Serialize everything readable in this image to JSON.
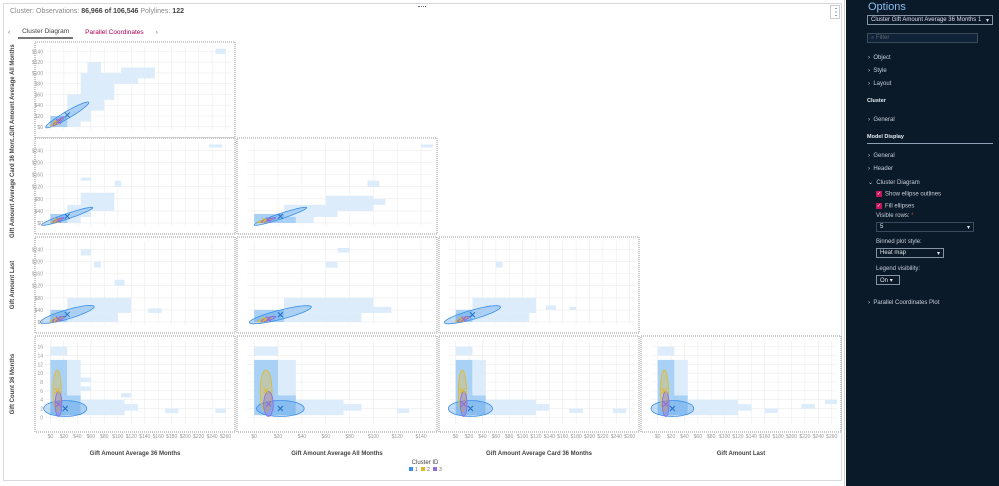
{
  "header": {
    "label_obs": "Cluster: Observations:",
    "obs": "86,966 of 106,546",
    "label_poly": "Polylines:",
    "poly": "122",
    "menu_icon": "⋮"
  },
  "tabs": {
    "prev": "‹",
    "next": "›",
    "items": [
      "Cluster Diagram",
      "Parallel Coordinates"
    ]
  },
  "colors": {
    "cluster1": "#3a8ee6",
    "cluster2": "#e3b72a",
    "cluster3": "#8c6ce0",
    "bin1": "#dcecfb",
    "bin2": "#a9d1f5",
    "bin3": "#3c97e6",
    "sidebar": "#0b1a29"
  },
  "chart_data": {
    "type": "heatmap",
    "legend": {
      "title": "Cluster ID",
      "items": [
        "1",
        "2",
        "3"
      ],
      "placement": "bottom"
    },
    "variables": [
      {
        "name": "Gift Amount Average 36 Months",
        "short": "Gift Amount Average 36 Months",
        "range": [
          -8,
          268
        ],
        "ticks": [
          0,
          20,
          40,
          60,
          80,
          100,
          120,
          140,
          160,
          180,
          200,
          220,
          240,
          260
        ],
        "prefix": "$"
      },
      {
        "name": "Gift Amount Average All Months",
        "short": "Gift Amount Average All Months",
        "range": [
          -6,
          150
        ],
        "ticks": [
          0,
          20,
          40,
          60,
          80,
          100,
          120,
          140
        ],
        "prefix": "$"
      },
      {
        "name": "Gift Amount Average Card 36 Months",
        "short": "Gift Amount Average Card 36 Mont...",
        "range": [
          -10,
          268
        ],
        "ticks": [
          0,
          20,
          40,
          60,
          80,
          100,
          120,
          140,
          160,
          180,
          200,
          220,
          240,
          260
        ],
        "yticks": [
          0,
          40,
          80,
          120,
          160,
          200,
          240
        ],
        "prefix": "$"
      },
      {
        "name": "Gift Amount Last",
        "short": "Gift Amount Last",
        "range": [
          -10,
          268
        ],
        "ticks": [
          0,
          20,
          40,
          60,
          80,
          100,
          120,
          140,
          160,
          180,
          200,
          220,
          240,
          260
        ],
        "yticks": [
          0,
          40,
          80,
          120,
          160,
          200,
          240
        ],
        "prefix": "$"
      },
      {
        "name": "Gift Count 36 Months",
        "short": "Gift Count 36 Months",
        "range": [
          -1.5,
          17.5
        ],
        "ticks": [
          0,
          2,
          4,
          6,
          8,
          10,
          12,
          14,
          16
        ],
        "prefix": ""
      }
    ],
    "panels": [
      {
        "x": 0,
        "y": 1,
        "bins": [
          [
            5,
            0,
            25,
            15,
            3
          ],
          [
            0,
            0,
            25,
            20,
            2
          ],
          [
            25,
            0,
            45,
            20,
            1
          ],
          [
            25,
            10,
            60,
            30,
            1
          ],
          [
            25,
            30,
            65,
            60,
            1
          ],
          [
            65,
            30,
            80,
            50,
            1
          ],
          [
            45,
            50,
            95,
            60,
            1
          ],
          [
            45,
            60,
            95,
            100,
            1
          ],
          [
            55,
            100,
            75,
            120,
            1
          ],
          [
            95,
            80,
            130,
            100,
            1
          ],
          [
            105,
            90,
            135,
            110,
            1
          ],
          [
            135,
            90,
            155,
            110,
            1
          ],
          [
            245,
            135,
            260,
            145,
            1
          ]
        ],
        "clusters": [
          [
            25,
            22,
            32,
            24,
            0.95
          ],
          [
            9,
            8,
            8,
            7,
            0.9
          ],
          [
            12,
            10,
            8,
            8,
            0.9
          ]
        ]
      },
      {
        "x": 0,
        "y": 2,
        "bins": [
          [
            5,
            0,
            25,
            20,
            3
          ],
          [
            0,
            0,
            25,
            30,
            2
          ],
          [
            25,
            0,
            45,
            30,
            1
          ],
          [
            25,
            20,
            60,
            60,
            1
          ],
          [
            45,
            40,
            95,
            100,
            1
          ],
          [
            65,
            70,
            80,
            90,
            1
          ],
          [
            95,
            120,
            105,
            140,
            1
          ],
          [
            45,
            140,
            60,
            150,
            1
          ],
          [
            235,
            250,
            255,
            260,
            1
          ]
        ],
        "clusters": [
          [
            25,
            22,
            38,
            30,
            0.95
          ],
          [
            9,
            8,
            8,
            7,
            0.9
          ],
          [
            12,
            10,
            8,
            8,
            0.9
          ]
        ]
      },
      {
        "x": 1,
        "y": 2,
        "bins": [
          [
            12,
            0,
            25,
            20,
            3
          ],
          [
            0,
            0,
            35,
            30,
            2
          ],
          [
            35,
            0,
            50,
            30,
            1
          ],
          [
            25,
            20,
            70,
            60,
            1
          ],
          [
            60,
            40,
            100,
            90,
            1
          ],
          [
            85,
            60,
            110,
            80,
            1
          ],
          [
            95,
            120,
            105,
            140,
            1
          ],
          [
            140,
            250,
            150,
            260,
            1
          ]
        ],
        "clusters": [
          [
            22,
            22,
            22,
            30,
            0.95
          ],
          [
            9,
            8,
            6,
            7,
            0.9
          ],
          [
            12,
            10,
            6,
            8,
            0.9
          ]
        ]
      },
      {
        "x": 0,
        "y": 3,
        "bins": [
          [
            5,
            0,
            25,
            20,
            3
          ],
          [
            0,
            0,
            40,
            40,
            2
          ],
          [
            25,
            0,
            100,
            30,
            1
          ],
          [
            25,
            30,
            120,
            80,
            1
          ],
          [
            55,
            40,
            75,
            50,
            1
          ],
          [
            65,
            180,
            75,
            200,
            1
          ],
          [
            95,
            120,
            110,
            140,
            1
          ],
          [
            45,
            220,
            60,
            240,
            1
          ],
          [
            145,
            30,
            165,
            45,
            1
          ]
        ],
        "clusters": [
          [
            25,
            25,
            40,
            30,
            0.85
          ],
          [
            9,
            8,
            9,
            8,
            0.8
          ],
          [
            12,
            10,
            9,
            9,
            0.8
          ]
        ]
      },
      {
        "x": 1,
        "y": 3,
        "bins": [
          [
            12,
            0,
            25,
            20,
            3
          ],
          [
            0,
            0,
            40,
            40,
            2
          ],
          [
            25,
            0,
            90,
            30,
            1
          ],
          [
            25,
            30,
            100,
            80,
            1
          ],
          [
            60,
            180,
            70,
            200,
            1
          ],
          [
            95,
            30,
            115,
            50,
            1
          ],
          [
            70,
            230,
            80,
            245,
            1
          ]
        ],
        "clusters": [
          [
            22,
            24,
            26,
            30,
            0.85
          ],
          [
            9,
            8,
            6,
            8,
            0.8
          ],
          [
            12,
            10,
            6,
            9,
            0.8
          ]
        ]
      },
      {
        "x": 2,
        "y": 3,
        "bins": [
          [
            12,
            0,
            25,
            20,
            3
          ],
          [
            0,
            0,
            40,
            40,
            2
          ],
          [
            25,
            0,
            110,
            30,
            1
          ],
          [
            25,
            30,
            120,
            80,
            1
          ],
          [
            85,
            40,
            105,
            55,
            1
          ],
          [
            135,
            40,
            150,
            55,
            1
          ],
          [
            60,
            180,
            70,
            200,
            1
          ],
          [
            170,
            40,
            180,
            50,
            1
          ]
        ],
        "clusters": [
          [
            25,
            24,
            42,
            30,
            0.85
          ],
          [
            9,
            8,
            9,
            8,
            0.8
          ],
          [
            12,
            10,
            9,
            9,
            0.8
          ]
        ]
      },
      {
        "x": 0,
        "y": 4,
        "bins": [
          [
            5,
            0.5,
            25,
            5,
            3
          ],
          [
            0,
            0.5,
            25,
            13,
            2
          ],
          [
            0,
            14,
            25,
            16,
            1
          ],
          [
            25,
            0.5,
            45,
            5,
            2
          ],
          [
            25,
            5,
            45,
            13,
            1
          ],
          [
            45,
            6,
            60,
            7,
            1
          ],
          [
            45,
            8,
            60,
            9,
            1
          ],
          [
            45,
            0.5,
            110,
            4,
            1
          ],
          [
            110,
            1.5,
            130,
            3,
            1
          ],
          [
            105,
            4.5,
            120,
            5.5,
            1
          ],
          [
            170,
            1,
            190,
            2,
            1
          ],
          [
            245,
            1,
            260,
            2,
            1
          ]
        ],
        "clusters": [
          [
            22,
            2,
            32,
            1.8,
            0
          ],
          [
            10,
            6,
            6,
            4.7,
            0
          ],
          [
            12,
            3,
            5,
            2.8,
            0
          ]
        ]
      },
      {
        "x": 1,
        "y": 4,
        "bins": [
          [
            5,
            0.5,
            20,
            5,
            3
          ],
          [
            0,
            0.5,
            20,
            13,
            2
          ],
          [
            0,
            14,
            20,
            16,
            1
          ],
          [
            20,
            0.5,
            35,
            5,
            2
          ],
          [
            20,
            5,
            35,
            13,
            1
          ],
          [
            35,
            0.5,
            75,
            4,
            1
          ],
          [
            75,
            1.5,
            90,
            3,
            1
          ],
          [
            120,
            1,
            130,
            2,
            1
          ]
        ],
        "clusters": [
          [
            22,
            2,
            20,
            1.8,
            0
          ],
          [
            10,
            6,
            5,
            4.7,
            0
          ],
          [
            12,
            3,
            4,
            2.8,
            0
          ]
        ]
      },
      {
        "x": 2,
        "y": 4,
        "bins": [
          [
            5,
            0.5,
            25,
            5,
            3
          ],
          [
            0,
            0.5,
            25,
            13,
            2
          ],
          [
            0,
            14,
            25,
            16,
            1
          ],
          [
            25,
            0.5,
            45,
            5,
            2
          ],
          [
            25,
            5,
            45,
            13,
            1
          ],
          [
            45,
            0.5,
            120,
            4,
            1
          ],
          [
            120,
            1.5,
            140,
            3,
            1
          ],
          [
            170,
            1,
            190,
            2,
            1
          ],
          [
            235,
            1,
            255,
            2,
            1
          ]
        ],
        "clusters": [
          [
            22,
            2,
            33,
            1.8,
            0
          ],
          [
            10,
            6,
            6,
            4.7,
            0
          ],
          [
            12,
            3,
            5,
            2.8,
            0
          ]
        ]
      },
      {
        "x": 3,
        "y": 4,
        "bins": [
          [
            5,
            0.5,
            25,
            5,
            3
          ],
          [
            0,
            0.5,
            25,
            13,
            2
          ],
          [
            0,
            14,
            25,
            16,
            1
          ],
          [
            25,
            0.5,
            45,
            5,
            2
          ],
          [
            25,
            5,
            45,
            13,
            1
          ],
          [
            45,
            0.5,
            120,
            4,
            1
          ],
          [
            120,
            1.5,
            140,
            3,
            1
          ],
          [
            160,
            1,
            180,
            2,
            1
          ],
          [
            215,
            2,
            235,
            3,
            1
          ],
          [
            250,
            3,
            268,
            4,
            1
          ]
        ],
        "clusters": [
          [
            22,
            2,
            32,
            1.8,
            0
          ],
          [
            10,
            6,
            6,
            4.7,
            0
          ],
          [
            12,
            3,
            5,
            2.8,
            0
          ]
        ]
      }
    ]
  },
  "sidebar": {
    "title": "Options",
    "object_select": "Cluster   Gift Amount Average 36 Months 1",
    "filter_placeholder": "Filter",
    "items_top": [
      "Object",
      "Style",
      "Layout"
    ],
    "section_cluster": "Cluster",
    "cluster_general": "General",
    "section_model": "Model Display",
    "model_items": [
      "General",
      "Header",
      "Cluster Diagram"
    ],
    "show_ellipse": "Show ellipse outlines",
    "fill_ellipses": "Fill ellipses",
    "visible_rows_label": "Visible rows:",
    "visible_rows_value": "5",
    "binned_label": "Binned plot style:",
    "binned_value": "Heat map",
    "legend_label": "Legend visibility:",
    "legend_value": "On",
    "parallel": "Parallel Coordinates Plot"
  }
}
